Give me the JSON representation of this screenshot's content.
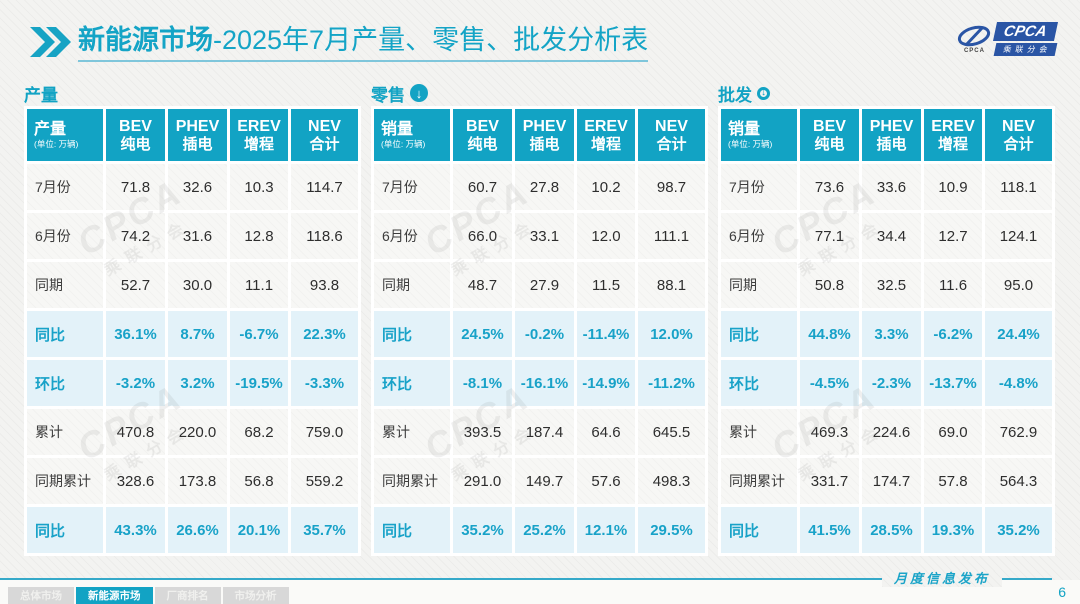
{
  "ui": {
    "header": {
      "title_bold": "新能源市场",
      "title_rest": "-2025年7月产量、零售、批发分析表",
      "logo": {
        "brand": "CPCA",
        "brand_sub": "乘联分会",
        "brand_small": "CPCA"
      }
    },
    "watermark": {
      "line1": "CPCA",
      "line2": "乘联分会"
    },
    "footer": {
      "tabs": [
        {
          "label": "总体市场",
          "active": false
        },
        {
          "label": "新能源市场",
          "active": true
        },
        {
          "label": "厂商排名",
          "active": false
        },
        {
          "label": "市场分析",
          "active": false
        }
      ],
      "release_label": "月度信息发布",
      "page_number": "6"
    },
    "colors": {
      "accent": "#12a3c4",
      "percent_text": "#18a2c8",
      "percent_row_bg": "#e3f2f9",
      "logo_blue": "#2a55a5",
      "tab_inactive_bg": "#d8d8d8"
    }
  },
  "chart_data": [
    {
      "type": "table",
      "section_label": "产量",
      "download_icon": null,
      "header_label": "产量",
      "unit_note": "(单位: 万辆)",
      "columns": [
        [
          "BEV",
          "纯电"
        ],
        [
          "PHEV",
          "插电"
        ],
        [
          "EREV",
          "增程"
        ],
        [
          "NEV",
          "合计"
        ]
      ],
      "rows": [
        {
          "label": "7月份",
          "kind": "data",
          "values": [
            "71.8",
            "32.6",
            "10.3",
            "114.7"
          ]
        },
        {
          "label": "6月份",
          "kind": "data",
          "values": [
            "74.2",
            "31.6",
            "12.8",
            "118.6"
          ]
        },
        {
          "label": "同期",
          "kind": "data",
          "values": [
            "52.7",
            "30.0",
            "11.1",
            "93.8"
          ]
        },
        {
          "label": "同比",
          "kind": "percent",
          "values": [
            "36.1%",
            "8.7%",
            "-6.7%",
            "22.3%"
          ]
        },
        {
          "label": "环比",
          "kind": "percent",
          "values": [
            "-3.2%",
            "3.2%",
            "-19.5%",
            "-3.3%"
          ]
        },
        {
          "label": "累计",
          "kind": "data",
          "values": [
            "470.8",
            "220.0",
            "68.2",
            "759.0"
          ]
        },
        {
          "label": "同期累计",
          "kind": "data",
          "values": [
            "328.6",
            "173.8",
            "56.8",
            "559.2"
          ]
        },
        {
          "label": "同比",
          "kind": "percent",
          "values": [
            "43.3%",
            "26.6%",
            "20.1%",
            "35.7%"
          ]
        }
      ]
    },
    {
      "type": "table",
      "section_label": "零售",
      "download_icon": "filled",
      "header_label": "销量",
      "unit_note": "(单位: 万辆)",
      "columns": [
        [
          "BEV",
          "纯电"
        ],
        [
          "PHEV",
          "插电"
        ],
        [
          "EREV",
          "增程"
        ],
        [
          "NEV",
          "合计"
        ]
      ],
      "rows": [
        {
          "label": "7月份",
          "kind": "data",
          "values": [
            "60.7",
            "27.8",
            "10.2",
            "98.7"
          ]
        },
        {
          "label": "6月份",
          "kind": "data",
          "values": [
            "66.0",
            "33.1",
            "12.0",
            "111.1"
          ]
        },
        {
          "label": "同期",
          "kind": "data",
          "values": [
            "48.7",
            "27.9",
            "11.5",
            "88.1"
          ]
        },
        {
          "label": "同比",
          "kind": "percent",
          "values": [
            "24.5%",
            "-0.2%",
            "-11.4%",
            "12.0%"
          ]
        },
        {
          "label": "环比",
          "kind": "percent",
          "values": [
            "-8.1%",
            "-16.1%",
            "-14.9%",
            "-11.2%"
          ]
        },
        {
          "label": "累计",
          "kind": "data",
          "values": [
            "393.5",
            "187.4",
            "64.6",
            "645.5"
          ]
        },
        {
          "label": "同期累计",
          "kind": "data",
          "values": [
            "291.0",
            "149.7",
            "57.6",
            "498.3"
          ]
        },
        {
          "label": "同比",
          "kind": "percent",
          "values": [
            "35.2%",
            "25.2%",
            "12.1%",
            "29.5%"
          ]
        }
      ]
    },
    {
      "type": "table",
      "section_label": "批发",
      "download_icon": "outline",
      "header_label": "销量",
      "unit_note": "(单位: 万辆)",
      "columns": [
        [
          "BEV",
          "纯电"
        ],
        [
          "PHEV",
          "插电"
        ],
        [
          "EREV",
          "增程"
        ],
        [
          "NEV",
          "合计"
        ]
      ],
      "rows": [
        {
          "label": "7月份",
          "kind": "data",
          "values": [
            "73.6",
            "33.6",
            "10.9",
            "118.1"
          ]
        },
        {
          "label": "6月份",
          "kind": "data",
          "values": [
            "77.1",
            "34.4",
            "12.7",
            "124.1"
          ]
        },
        {
          "label": "同期",
          "kind": "data",
          "values": [
            "50.8",
            "32.5",
            "11.6",
            "95.0"
          ]
        },
        {
          "label": "同比",
          "kind": "percent",
          "values": [
            "44.8%",
            "3.3%",
            "-6.2%",
            "24.4%"
          ]
        },
        {
          "label": "环比",
          "kind": "percent",
          "values": [
            "-4.5%",
            "-2.3%",
            "-13.7%",
            "-4.8%"
          ]
        },
        {
          "label": "累计",
          "kind": "data",
          "values": [
            "469.3",
            "224.6",
            "69.0",
            "762.9"
          ]
        },
        {
          "label": "同期累计",
          "kind": "data",
          "values": [
            "331.7",
            "174.7",
            "57.8",
            "564.3"
          ]
        },
        {
          "label": "同比",
          "kind": "percent",
          "values": [
            "41.5%",
            "28.5%",
            "19.3%",
            "35.2%"
          ]
        }
      ]
    }
  ]
}
